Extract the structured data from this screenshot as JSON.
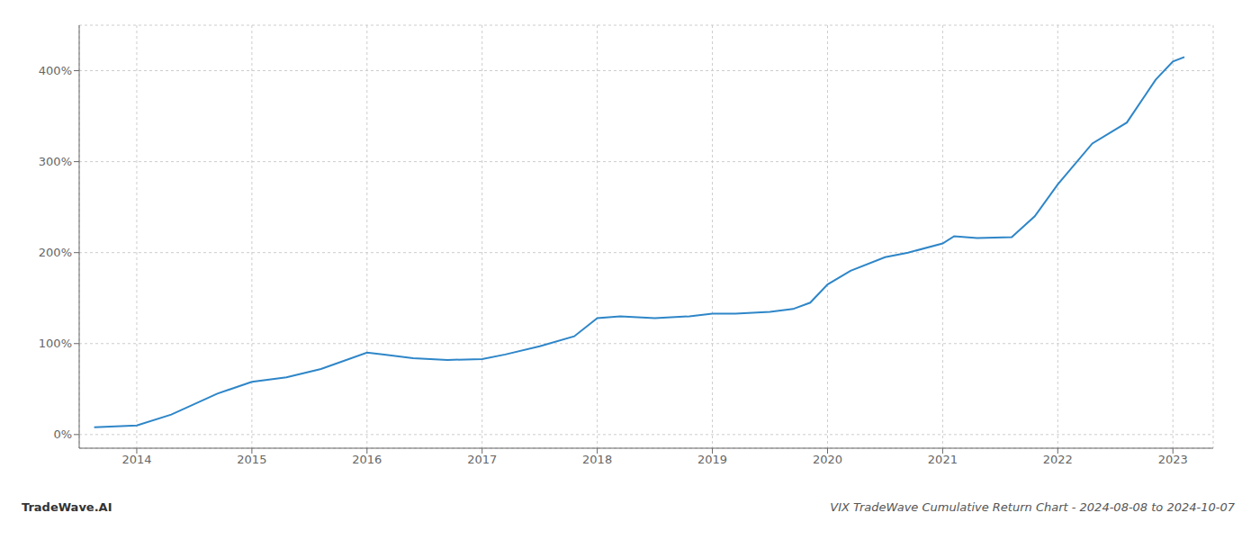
{
  "chart_data": {
    "type": "line",
    "x": [
      2013.63,
      2014.0,
      2014.3,
      2014.7,
      2015.0,
      2015.3,
      2015.6,
      2016.0,
      2016.15,
      2016.4,
      2016.7,
      2017.0,
      2017.2,
      2017.5,
      2017.8,
      2018.0,
      2018.2,
      2018.5,
      2018.8,
      2019.0,
      2019.2,
      2019.5,
      2019.7,
      2019.85,
      2020.0,
      2020.2,
      2020.5,
      2020.7,
      2021.0,
      2021.1,
      2021.3,
      2021.6,
      2021.8,
      2022.0,
      2022.3,
      2022.6,
      2022.85,
      2023.0,
      2023.1
    ],
    "values": [
      8,
      10,
      22,
      45,
      58,
      63,
      72,
      90,
      88,
      84,
      82,
      83,
      88,
      97,
      108,
      128,
      130,
      128,
      130,
      133,
      133,
      135,
      138,
      145,
      165,
      180,
      195,
      200,
      210,
      218,
      216,
      217,
      240,
      275,
      320,
      343,
      390,
      410,
      415
    ],
    "color": "#2e86c8",
    "xlim": [
      2013.5,
      2023.35
    ],
    "ylim": [
      -15,
      450
    ],
    "xticks": [
      2014,
      2015,
      2016,
      2017,
      2018,
      2019,
      2020,
      2021,
      2022,
      2023
    ],
    "yticks": [
      {
        "value": 0,
        "label": "0%"
      },
      {
        "value": 100,
        "label": "100%"
      },
      {
        "value": 200,
        "label": "200%"
      },
      {
        "value": 300,
        "label": "300%"
      },
      {
        "value": 400,
        "label": "400%"
      }
    ],
    "grid": true,
    "annotations": [
      "TradeWave.AI",
      "VIX TradeWave Cumulative Return Chart - 2024-08-08 to 2024-10-07"
    ]
  }
}
